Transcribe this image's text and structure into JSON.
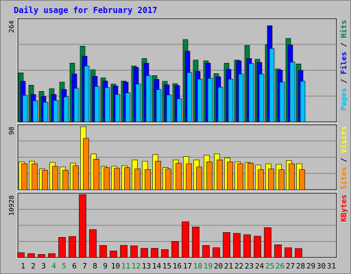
{
  "chart_data": {
    "type": "bar",
    "title": "Daily usage for February 2017",
    "x": [
      "1",
      "2",
      "3",
      "4",
      "5",
      "6",
      "7",
      "8",
      "9",
      "10",
      "11",
      "12",
      "13",
      "14",
      "15",
      "16",
      "17",
      "18",
      "19",
      "20",
      "21",
      "22",
      "23",
      "24",
      "25",
      "26",
      "27",
      "28",
      "29",
      "30",
      "31"
    ],
    "weekend_days": [
      "4",
      "5",
      "11",
      "12",
      "18",
      "19",
      "25",
      "26"
    ],
    "panels": [
      {
        "id": "hits-files-pages",
        "ymax_label": "264",
        "ylim": [
          0,
          264
        ],
        "right_label": [
          {
            "text": "Pages",
            "color": "#00c0ff"
          },
          {
            "text": " / ",
            "color": "#000000"
          },
          {
            "text": "Files",
            "color": "#0000ff"
          },
          {
            "text": " / ",
            "color": "#000000"
          },
          {
            "text": "Hits",
            "color": "#008040"
          }
        ],
        "series": [
          {
            "name": "Hits",
            "color": "#008040",
            "values": [
              127,
              95,
              79,
              86,
              103,
              152,
              196,
              135,
              114,
              98,
              106,
              145,
              164,
              120,
              105,
              99,
              213,
              160,
              158,
              125,
              152,
              160,
              198,
              162,
              200,
              137,
              216,
              150,
              0,
              0,
              0
            ]
          },
          {
            "name": "Files",
            "color": "#0000ff",
            "values": [
              105,
              71,
              66,
              71,
              84,
              124,
              170,
              118,
              106,
              93,
              103,
              141,
              152,
              110,
              96,
              94,
              183,
              131,
              152,
              117,
              136,
              158,
              164,
              154,
              249,
              134,
              199,
              133,
              0,
              0,
              0
            ]
          },
          {
            "name": "Pages",
            "color": "#00c0ff",
            "values": [
              69,
              55,
              51,
              56,
              65,
              87,
              145,
              92,
              89,
              71,
              75,
              98,
              120,
              84,
              70,
              60,
              128,
              111,
              113,
              90,
              111,
              124,
              151,
              124,
              190,
              103,
              155,
              105,
              0,
              0,
              0
            ]
          }
        ]
      },
      {
        "id": "visits-sites",
        "ymax_label": "98",
        "ylim": [
          0,
          98
        ],
        "right_label": [
          {
            "text": "Sites",
            "color": "#ff8000"
          },
          {
            "text": " / ",
            "color": "#000000"
          },
          {
            "text": "Visits",
            "color": "#ffff00"
          }
        ],
        "series": [
          {
            "name": "Visits",
            "color": "#ffff00",
            "values": [
              43,
              44,
              32,
              42,
              35,
              41,
              97,
              55,
              36,
              36,
              37,
              46,
              44,
              54,
              34,
              46,
              51,
              46,
              53,
              55,
              49,
              43,
              42,
              38,
              40,
              39,
              45,
              40,
              0,
              0,
              0
            ]
          },
          {
            "name": "Sites",
            "color": "#ff8000",
            "values": [
              40,
              40,
              30,
              36,
              30,
              37,
              79,
              47,
              34,
              33,
              34,
              32,
              31,
              44,
              32,
              41,
              40,
              35,
              43,
              46,
              43,
              40,
              41,
              31,
              32,
              31,
              40,
              31,
              0,
              0,
              0
            ]
          }
        ]
      },
      {
        "id": "kbytes",
        "ymax_label": "10928",
        "ylim": [
          0,
          10928
        ],
        "right_label": [
          {
            "text": "KBytes",
            "color": "#ff0000"
          }
        ],
        "series": [
          {
            "name": "KBytes",
            "color": "#ff0000",
            "values": [
              842,
              691,
              542,
              692,
              3504,
              3659,
              10928,
              4864,
              2103,
              1150,
              2117,
              2034,
              1602,
              1603,
              1393,
              2808,
              6208,
              5296,
              2094,
              1710,
              4355,
              4196,
              3956,
              3706,
              5194,
              2215,
              1700,
              1568,
              0,
              0,
              0
            ]
          }
        ]
      }
    ]
  }
}
